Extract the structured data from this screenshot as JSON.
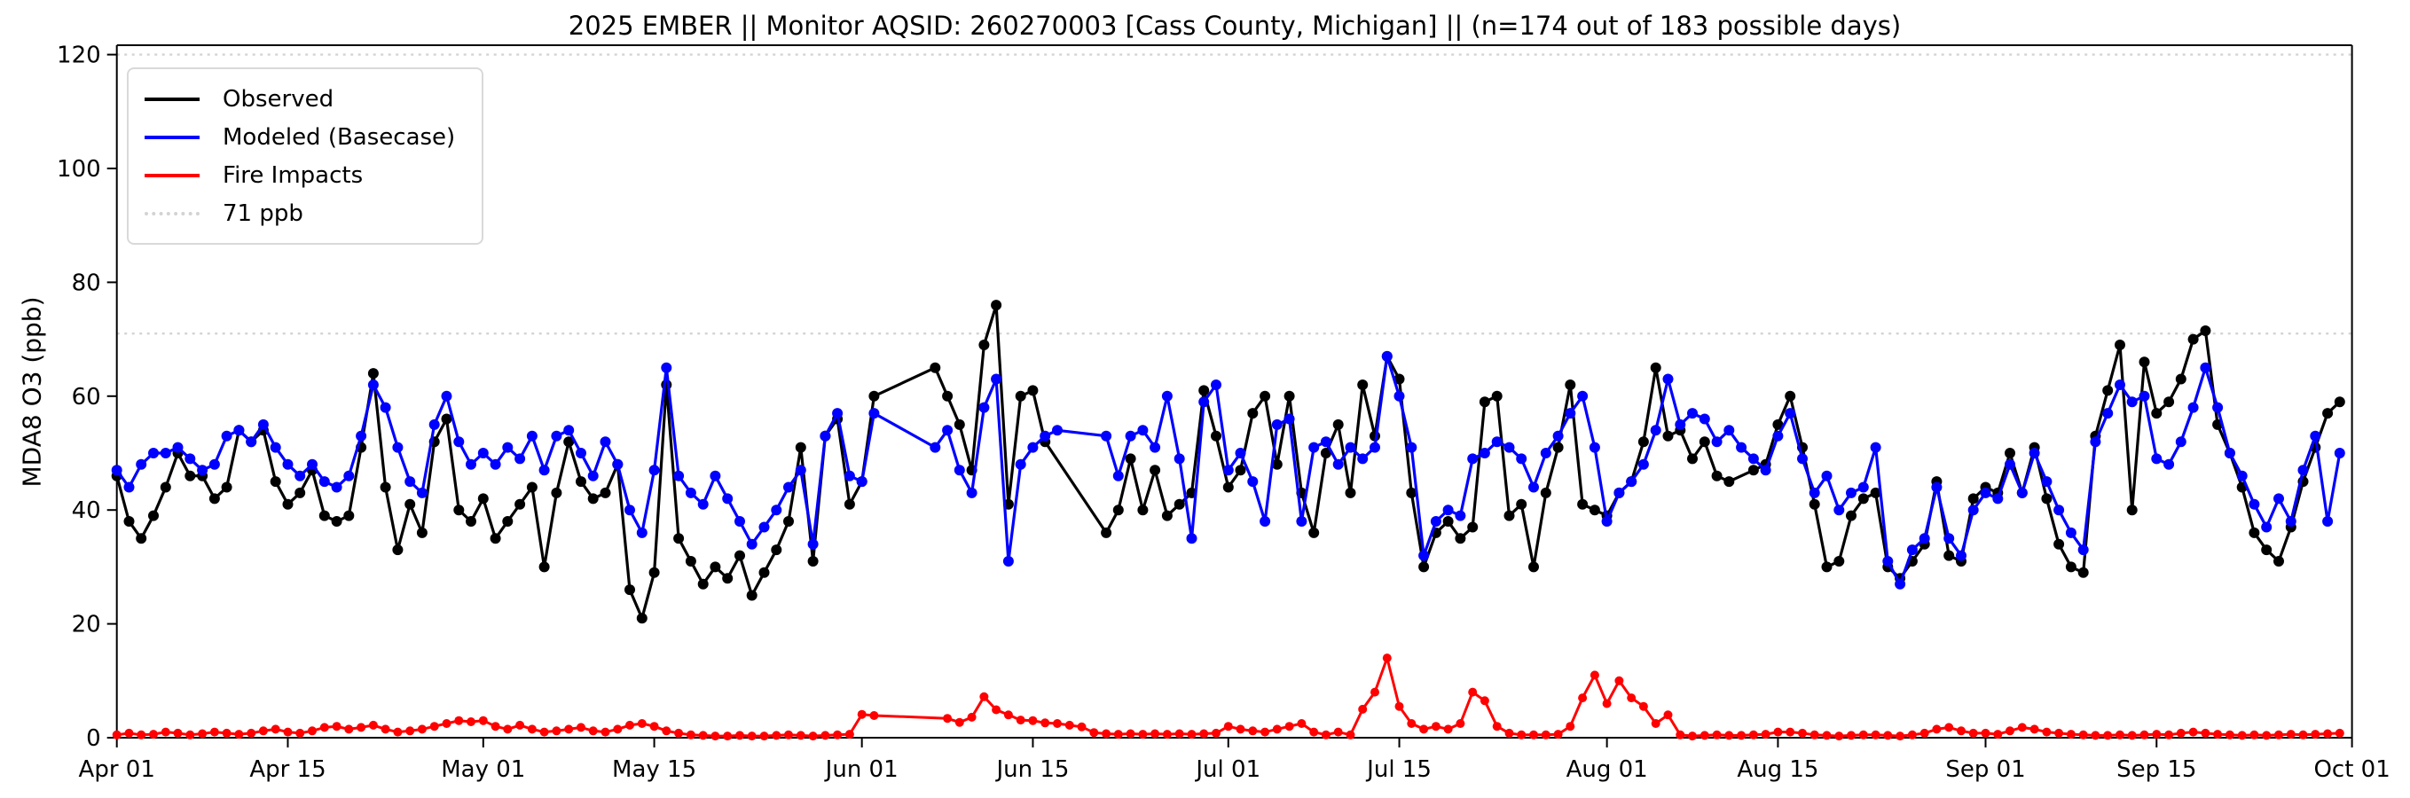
{
  "chart": {
    "title": "2025 EMBER || Monitor AQSID: 260270003 [Cass County, Michigan] || (n=174 out of 183 possible days)",
    "y_axis": {
      "label": "MDA8 O3 (ppb)",
      "tick_labels": [
        "0",
        "20",
        "40",
        "60",
        "80",
        "100",
        "120"
      ],
      "ticks": [
        0,
        20,
        40,
        60,
        80,
        100,
        120
      ],
      "ylim": [
        0,
        120
      ]
    },
    "x_axis": {
      "start_date": "2025-04-01",
      "end_date": "2025-10-01",
      "unit": "day",
      "ticks": [
        {
          "day": 0,
          "label": "Apr 01"
        },
        {
          "day": 14,
          "label": "Apr 15"
        },
        {
          "day": 30,
          "label": "May 01"
        },
        {
          "day": 44,
          "label": "May 15"
        },
        {
          "day": 61,
          "label": "Jun 01"
        },
        {
          "day": 75,
          "label": "Jun 15"
        },
        {
          "day": 91,
          "label": "Jul 01"
        },
        {
          "day": 105,
          "label": "Jul 15"
        },
        {
          "day": 122,
          "label": "Aug 01"
        },
        {
          "day": 136,
          "label": "Aug 15"
        },
        {
          "day": 153,
          "label": "Sep 01"
        },
        {
          "day": 167,
          "label": "Sep 15"
        },
        {
          "day": 183,
          "label": "Oct 01"
        }
      ]
    },
    "legend": {
      "position": "upper left",
      "items": [
        {
          "label": "Observed",
          "color": "#000000",
          "style": "solid"
        },
        {
          "label": "Modeled (Basecase)",
          "color": "#0000ff",
          "style": "solid"
        },
        {
          "label": "Fire Impacts",
          "color": "#ff0000",
          "style": "solid"
        },
        {
          "label": "71 ppb",
          "color": "#d3d3d3",
          "style": "dotted"
        }
      ]
    }
  },
  "chart_data": {
    "type": "line",
    "title": "2025 EMBER || Monitor AQSID: 260270003 [Cass County, Michigan] || (n=174 out of 183 possible days)",
    "xlabel": "",
    "ylabel": "MDA8 O3 (ppb)",
    "ylim": [
      0,
      120
    ],
    "grid": false,
    "threshold_lines": [
      {
        "value": 71,
        "label": "71 ppb",
        "color": "#d3d3d3"
      },
      {
        "value": 120,
        "label": "",
        "color": "#d3d3d3"
      }
    ],
    "n_observed_days": 174,
    "n_possible_days": 183,
    "x_start_date": "2025-04-01",
    "x_days": 183,
    "series": [
      {
        "name": "Observed",
        "color": "#000000",
        "values": [
          46,
          38,
          35,
          39,
          44,
          50,
          46,
          46,
          42,
          44,
          54,
          52,
          54,
          45,
          41,
          43,
          47,
          39,
          38,
          39,
          51,
          64,
          44,
          33,
          41,
          36,
          52,
          56,
          40,
          38,
          42,
          35,
          38,
          41,
          44,
          30,
          43,
          52,
          45,
          42,
          43,
          48,
          26,
          21,
          29,
          62,
          35,
          31,
          27,
          30,
          28,
          32,
          25,
          29,
          33,
          38,
          51,
          31,
          53,
          56,
          41,
          45,
          60,
          null,
          null,
          null,
          null,
          65,
          60,
          55,
          47,
          69,
          76,
          41,
          60,
          61,
          52,
          null,
          null,
          null,
          null,
          36,
          40,
          49,
          40,
          47,
          39,
          41,
          43,
          61,
          53,
          44,
          47,
          57,
          60,
          48,
          60,
          43,
          36,
          50,
          55,
          43,
          62,
          53,
          67,
          63,
          43,
          30,
          36,
          38,
          35,
          37,
          59,
          60,
          39,
          41,
          30,
          43,
          51,
          62,
          41,
          40,
          39,
          43,
          45,
          52,
          65,
          53,
          54,
          49,
          52,
          46,
          45,
          null,
          47,
          48,
          55,
          60,
          51,
          41,
          30,
          31,
          39,
          42,
          43,
          30,
          28,
          31,
          34,
          45,
          32,
          31,
          42,
          44,
          43,
          50,
          43,
          51,
          42,
          34,
          30,
          29,
          53,
          61,
          69,
          40,
          66,
          57,
          59,
          63,
          70,
          71.5,
          55,
          50,
          44,
          36,
          33,
          31,
          37,
          45,
          51,
          57,
          59
        ]
      },
      {
        "name": "Modeled (Basecase)",
        "color": "#0000ff",
        "values": [
          47,
          44,
          48,
          50,
          50,
          51,
          49,
          47,
          48,
          53,
          54,
          52,
          55,
          51,
          48,
          46,
          48,
          45,
          44,
          46,
          53,
          62,
          58,
          51,
          45,
          43,
          55,
          60,
          52,
          48,
          50,
          48,
          51,
          49,
          53,
          47,
          53,
          54,
          50,
          46,
          52,
          48,
          40,
          36,
          47,
          65,
          46,
          43,
          41,
          46,
          42,
          38,
          34,
          37,
          40,
          44,
          47,
          34,
          53,
          57,
          46,
          45,
          57,
          null,
          null,
          null,
          null,
          51,
          54,
          47,
          43,
          58,
          63,
          31,
          48,
          51,
          53,
          54,
          null,
          null,
          null,
          53,
          46,
          53,
          54,
          51,
          60,
          49,
          35,
          59,
          62,
          47,
          50,
          45,
          38,
          55,
          56,
          38,
          51,
          52,
          48,
          51,
          49,
          51,
          67,
          60,
          51,
          32,
          38,
          40,
          39,
          49,
          50,
          52,
          51,
          49,
          44,
          50,
          53,
          57,
          60,
          51,
          38,
          43,
          45,
          48,
          54,
          63,
          55,
          57,
          56,
          52,
          54,
          51,
          49,
          47,
          53,
          57,
          49,
          43,
          46,
          40,
          43,
          44,
          51,
          31,
          27,
          33,
          35,
          44,
          35,
          32,
          40,
          43,
          42,
          48,
          43,
          50,
          45,
          40,
          36,
          33,
          52,
          57,
          62,
          59,
          60,
          49,
          48,
          52,
          58,
          65,
          58,
          50,
          46,
          41,
          37,
          42,
          38,
          47,
          53,
          38,
          50
        ]
      },
      {
        "name": "Fire Impacts",
        "color": "#ff0000",
        "values": [
          0.5,
          0.8,
          0.5,
          0.6,
          1.0,
          0.8,
          0.5,
          0.7,
          1.0,
          0.8,
          0.6,
          0.8,
          1.2,
          1.5,
          1.0,
          0.8,
          1.2,
          1.8,
          2.0,
          1.5,
          1.8,
          2.2,
          1.5,
          1.0,
          1.2,
          1.5,
          2.0,
          2.5,
          3.0,
          2.8,
          3.0,
          2.0,
          1.5,
          2.2,
          1.5,
          1.0,
          1.2,
          1.5,
          1.8,
          1.2,
          1.0,
          1.5,
          2.2,
          2.5,
          2.0,
          1.2,
          0.8,
          0.5,
          0.4,
          0.3,
          0.3,
          0.4,
          0.3,
          0.3,
          0.4,
          0.5,
          0.4,
          0.3,
          0.4,
          0.5,
          0.6,
          4.1,
          3.9,
          null,
          null,
          null,
          null,
          null,
          3.4,
          2.7,
          3.6,
          7.2,
          4.9,
          4.0,
          3.1,
          3.0,
          2.6,
          2.5,
          2.2,
          1.9,
          0.9,
          0.7,
          0.6,
          0.7,
          0.6,
          0.7,
          0.6,
          0.7,
          0.6,
          0.7,
          0.8,
          2.0,
          1.5,
          1.2,
          1.0,
          1.5,
          2.0,
          2.5,
          1.0,
          0.5,
          1.0,
          0.5,
          5.0,
          8.0,
          14.0,
          5.5,
          2.5,
          1.5,
          2.0,
          1.5,
          2.5,
          8.0,
          6.5,
          2.0,
          0.8,
          0.5,
          0.5,
          0.5,
          0.6,
          2.0,
          7.0,
          11.0,
          6.0,
          10.0,
          7.0,
          5.5,
          2.5,
          4.0,
          0.5,
          0.3,
          0.4,
          0.5,
          0.4,
          0.4,
          0.5,
          0.6,
          1.0,
          1.0,
          0.8,
          0.5,
          0.4,
          0.3,
          0.4,
          0.5,
          0.5,
          0.4,
          0.3,
          0.5,
          0.8,
          1.5,
          1.8,
          1.2,
          0.8,
          0.8,
          0.6,
          1.2,
          1.8,
          1.5,
          1.0,
          0.8,
          0.6,
          0.5,
          0.4,
          0.4,
          0.5,
          0.4,
          0.5,
          0.6,
          0.5,
          0.8,
          1.0,
          0.8,
          0.6,
          0.5,
          0.4,
          0.5,
          0.4,
          0.5,
          0.6,
          0.5,
          0.6,
          0.7,
          0.8
        ]
      }
    ]
  }
}
